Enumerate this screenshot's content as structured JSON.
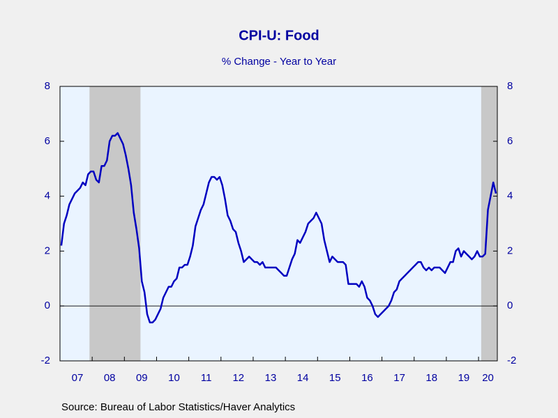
{
  "chart_data": {
    "type": "line",
    "title": "CPI-U: Food",
    "subtitle": "% Change - Year to Year",
    "source": "Source:  Bureau of Labor Statistics/Haver Analytics",
    "categories": [
      null,
      null,
      null,
      null,
      null,
      null,
      "07",
      null,
      null,
      null,
      null,
      null,
      null,
      null,
      null,
      null,
      null,
      null,
      "08",
      null,
      null,
      null,
      null,
      null,
      null,
      null,
      null,
      null,
      null,
      null,
      "09",
      null,
      null,
      null,
      null,
      null,
      null,
      null,
      null,
      null,
      null,
      null,
      "10",
      null,
      null,
      null,
      null,
      null,
      null,
      null,
      null,
      null,
      null,
      null,
      "11",
      null,
      null,
      null,
      null,
      null,
      null,
      null,
      null,
      null,
      null,
      null,
      "12",
      null,
      null,
      null,
      null,
      null,
      null,
      null,
      null,
      null,
      null,
      null,
      "13",
      null,
      null,
      null,
      null,
      null,
      null,
      null,
      null,
      null,
      null,
      null,
      "14",
      null,
      null,
      null,
      null,
      null,
      null,
      null,
      null,
      null,
      null,
      null,
      "15",
      null,
      null,
      null,
      null,
      null,
      null,
      null,
      null,
      null,
      null,
      null,
      "16",
      null,
      null,
      null,
      null,
      null,
      null,
      null,
      null,
      null,
      null,
      null,
      "17",
      null,
      null,
      null,
      null,
      null,
      null,
      null,
      null,
      null,
      null,
      null,
      "18",
      null,
      null,
      null,
      null,
      null,
      null,
      null,
      null,
      null,
      null,
      null,
      "19",
      null,
      null,
      null,
      null,
      null,
      null,
      null,
      null,
      "20",
      null,
      null,
      null
    ],
    "series": [
      {
        "name": "CPI-U: Food",
        "color": "#0000c0",
        "values": [
          2.2,
          3.0,
          3.3,
          3.7,
          3.9,
          4.1,
          4.2,
          4.3,
          4.5,
          4.4,
          4.8,
          4.9,
          4.9,
          4.6,
          4.5,
          5.1,
          5.1,
          5.3,
          6.0,
          6.2,
          6.2,
          6.3,
          6.1,
          5.9,
          5.5,
          5.0,
          4.4,
          3.4,
          2.8,
          2.1,
          0.9,
          0.5,
          -0.3,
          -0.6,
          -0.6,
          -0.5,
          -0.3,
          -0.1,
          0.3,
          0.5,
          0.7,
          0.7,
          0.9,
          1.0,
          1.4,
          1.4,
          1.5,
          1.5,
          1.8,
          2.2,
          2.9,
          3.2,
          3.5,
          3.7,
          4.1,
          4.5,
          4.7,
          4.7,
          4.6,
          4.7,
          4.4,
          3.9,
          3.3,
          3.1,
          2.8,
          2.7,
          2.3,
          2.0,
          1.6,
          1.7,
          1.8,
          1.7,
          1.6,
          1.6,
          1.5,
          1.6,
          1.4,
          1.4,
          1.4,
          1.4,
          1.4,
          1.3,
          1.2,
          1.1,
          1.1,
          1.4,
          1.7,
          1.9,
          2.4,
          2.3,
          2.5,
          2.7,
          3.0,
          3.1,
          3.2,
          3.4,
          3.2,
          3.0,
          2.4,
          2.0,
          1.6,
          1.8,
          1.7,
          1.6,
          1.6,
          1.6,
          1.5,
          0.8,
          0.8,
          0.8,
          0.8,
          0.7,
          0.9,
          0.7,
          0.3,
          0.2,
          0.0,
          -0.3,
          -0.4,
          -0.3,
          -0.2,
          -0.1,
          0.0,
          0.2,
          0.5,
          0.6,
          0.9,
          1.0,
          1.1,
          1.2,
          1.3,
          1.4,
          1.5,
          1.6,
          1.6,
          1.4,
          1.3,
          1.4,
          1.3,
          1.4,
          1.4,
          1.4,
          1.3,
          1.2,
          1.4,
          1.6,
          1.6,
          2.0,
          2.1,
          1.8,
          2.0,
          1.9,
          1.8,
          1.7,
          1.8,
          2.0,
          1.8,
          1.8,
          1.9,
          3.5,
          4.0,
          4.5,
          4.1
        ]
      }
    ],
    "ylim": [
      -2,
      8
    ],
    "yticks": [
      -2,
      0,
      2,
      4,
      6,
      8
    ],
    "y2lim": [
      -2,
      8
    ],
    "y2ticks": [
      -2,
      0,
      2,
      4,
      6,
      8
    ]
  }
}
